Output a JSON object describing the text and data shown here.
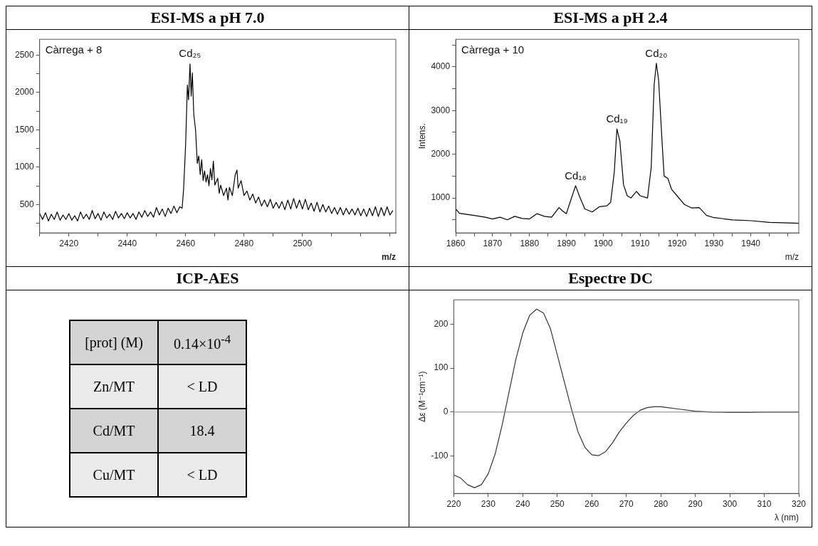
{
  "chart_data": [
    {
      "type": "line",
      "title": "ESI-MS a pH 7.0",
      "xlabel": "m/z",
      "annotations": [
        "Càrrega + 8",
        {
          "text": "Cd₂₅",
          "x": 2461.5,
          "y": 2380
        }
      ],
      "grid": false,
      "legend": false,
      "marker": "none",
      "line_style": "solid",
      "xlim": [
        2410,
        2532
      ],
      "ylim": [
        120,
        2710
      ],
      "xticks": [
        {
          "value": 2410,
          "label": null
        },
        2420,
        {
          "value": 2430,
          "label": null
        },
        2440,
        {
          "value": 2450,
          "label": null
        },
        2460,
        {
          "value": 2470,
          "label": null
        },
        2480,
        {
          "value": 2490,
          "label": null
        },
        2500,
        {
          "value": 2510,
          "label": null
        },
        {
          "value": 2520,
          "label": null
        },
        {
          "value": 2530,
          "label": null
        }
      ],
      "yticks": [
        {
          "value": 250,
          "label": null
        },
        500,
        {
          "value": 750,
          "label": null
        },
        1000,
        {
          "value": 1250,
          "label": null
        },
        1500,
        {
          "value": 1750,
          "label": null
        },
        2000,
        {
          "value": 2250,
          "label": null
        },
        2500
      ],
      "series": [
        {
          "color": "#000000",
          "x": [
            2410,
            2411,
            2412,
            2413,
            2414,
            2415,
            2416,
            2417,
            2418,
            2419,
            2420,
            2421,
            2422,
            2423,
            2424,
            2425,
            2426,
            2427,
            2428,
            2429,
            2430,
            2431,
            2432,
            2433,
            2434,
            2435,
            2436,
            2437,
            2438,
            2439,
            2440,
            2441,
            2442,
            2443,
            2444,
            2445,
            2446,
            2447,
            2448,
            2449,
            2450,
            2451,
            2452,
            2453,
            2454,
            2455,
            2456,
            2457,
            2458,
            2458.8,
            2459.3,
            2460,
            2460.6,
            2461,
            2461.5,
            2461.9,
            2462.3,
            2462.8,
            2463.4,
            2464,
            2464.5,
            2465,
            2465.5,
            2466,
            2466.5,
            2467,
            2467.5,
            2468,
            2468.5,
            2469,
            2469.5,
            2470,
            2471,
            2471.5,
            2472,
            2473,
            2474,
            2474.5,
            2475,
            2476,
            2477,
            2477.6,
            2478,
            2479,
            2480,
            2481,
            2482,
            2483,
            2484,
            2485,
            2486,
            2487,
            2488,
            2489,
            2490,
            2491,
            2492,
            2493,
            2494,
            2495,
            2496,
            2497,
            2498,
            2499,
            2500,
            2501,
            2502,
            2503,
            2504,
            2505,
            2506,
            2507,
            2508,
            2509,
            2510,
            2511,
            2512,
            2513,
            2514,
            2515,
            2516,
            2517,
            2518,
            2519,
            2520,
            2521,
            2522,
            2523,
            2524,
            2525,
            2526,
            2527,
            2528,
            2529,
            2530,
            2531
          ],
          "values": [
            380,
            300,
            390,
            280,
            370,
            300,
            400,
            290,
            360,
            300,
            380,
            290,
            350,
            280,
            400,
            310,
            370,
            300,
            420,
            310,
            380,
            290,
            400,
            320,
            370,
            300,
            410,
            320,
            380,
            310,
            390,
            320,
            380,
            300,
            400,
            330,
            420,
            340,
            400,
            330,
            460,
            360,
            440,
            340,
            450,
            380,
            480,
            390,
            470,
            450,
            700,
            1300,
            2100,
            1900,
            2380,
            1950,
            2260,
            1700,
            1500,
            1050,
            1150,
            900,
            1100,
            820,
            950,
            800,
            900,
            750,
            980,
            830,
            1080,
            760,
            850,
            650,
            760,
            620,
            720,
            560,
            730,
            620,
            900,
            960,
            720,
            820,
            620,
            680,
            560,
            640,
            520,
            600,
            480,
            560,
            470,
            570,
            450,
            530,
            450,
            540,
            430,
            560,
            440,
            580,
            450,
            560,
            440,
            570,
            430,
            520,
            410,
            530,
            400,
            500,
            400,
            480,
            380,
            460,
            370,
            460,
            360,
            450,
            370,
            440,
            360,
            450,
            350,
            440,
            340,
            450,
            350,
            470,
            340,
            460,
            350,
            470,
            360,
            420
          ]
        }
      ]
    },
    {
      "type": "line",
      "title": "ESI-MS a pH 2.4",
      "xlabel": "m/z",
      "ylabel": "Intens.",
      "annotations": [
        "Càrrega + 10",
        {
          "text": "Cd₁₈",
          "x": 1892.5,
          "y": 1280
        },
        {
          "text": "Cd₁₉",
          "x": 1903.7,
          "y": 2580
        },
        {
          "text": "Cd₂₀",
          "x": 1914.4,
          "y": 4080
        }
      ],
      "grid": false,
      "legend": false,
      "marker": "none",
      "line_style": "solid",
      "xlim": [
        1860,
        1953
      ],
      "ylim": [
        200,
        4630
      ],
      "xticks": [
        1860,
        {
          "value": 1865,
          "label": null
        },
        1870,
        {
          "value": 1875,
          "label": null
        },
        1880,
        {
          "value": 1885,
          "label": null
        },
        1890,
        {
          "value": 1895,
          "label": null
        },
        1900,
        {
          "value": 1905,
          "label": null
        },
        1910,
        {
          "value": 1915,
          "label": null
        },
        1920,
        {
          "value": 1925,
          "label": null
        },
        1930,
        {
          "value": 1935,
          "label": null
        },
        1940,
        {
          "value": 1945,
          "label": null
        },
        {
          "value": 1950,
          "label": null
        }
      ],
      "yticks": [
        {
          "value": 500,
          "label": null
        },
        1000,
        {
          "value": 1500,
          "label": null
        },
        2000,
        {
          "value": 2500,
          "label": null
        },
        3000,
        {
          "value": 3500,
          "label": null
        },
        4000,
        {
          "value": 4500,
          "label": null
        }
      ],
      "series": [
        {
          "color": "#000000",
          "x": [
            1860,
            1861,
            1865,
            1868,
            1870,
            1872,
            1874,
            1876,
            1878,
            1880,
            1882,
            1884,
            1886,
            1888,
            1889,
            1890,
            1891,
            1892.5,
            1893.5,
            1895,
            1897,
            1899,
            1901,
            1902,
            1903,
            1903.7,
            1904.5,
            1905.5,
            1906.5,
            1907.5,
            1909,
            1910,
            1912,
            1913,
            1913.8,
            1914.4,
            1915,
            1916,
            1916.5,
            1917.5,
            1918.5,
            1920,
            1922,
            1924,
            1926,
            1928,
            1930,
            1935,
            1940,
            1945,
            1950,
            1953
          ],
          "values": [
            750,
            650,
            600,
            560,
            520,
            560,
            500,
            580,
            530,
            520,
            640,
            580,
            560,
            780,
            700,
            640,
            900,
            1280,
            1050,
            750,
            680,
            800,
            820,
            900,
            1600,
            2580,
            2300,
            1300,
            1050,
            1000,
            1150,
            1050,
            1000,
            1700,
            3600,
            4080,
            3700,
            2200,
            1500,
            1450,
            1200,
            1050,
            850,
            770,
            780,
            600,
            550,
            500,
            480,
            440,
            430,
            420
          ]
        }
      ]
    },
    {
      "type": "other",
      "title": "ICP-AES",
      "annotations": [
        "[prot] (M)",
        "0.14×10$^{-4}$",
        "Zn/MT",
        "< LD",
        "Cd/MT",
        "18.4",
        "Cu/MT",
        "< LD"
      ]
    },
    {
      "type": "line",
      "title": "Espectre DC",
      "xlabel": "λ (nm)",
      "ylabel": "Δε (M⁻¹cm⁻¹)",
      "grid": false,
      "legend": false,
      "marker": "none",
      "line_style": "solid",
      "xlim": [
        220,
        320
      ],
      "ylim": [
        -185,
        255
      ],
      "xticks": [
        220,
        230,
        240,
        250,
        260,
        270,
        280,
        290,
        300,
        310,
        320
      ],
      "yticks": [
        -100,
        0,
        100,
        200
      ],
      "ref_lines": [
        {
          "axis": "y",
          "value": 0,
          "color": "#888888"
        }
      ],
      "series": [
        {
          "color": "#333333",
          "x": [
            220,
            222,
            224,
            226,
            228,
            230,
            232,
            234,
            236,
            238,
            240,
            242,
            244,
            246,
            248,
            250,
            252,
            254,
            256,
            258,
            260,
            262,
            264,
            266,
            268,
            270,
            272,
            274,
            276,
            278,
            280,
            282,
            285,
            290,
            295,
            300,
            305,
            310,
            320
          ],
          "values": [
            -143,
            -150,
            -165,
            -172,
            -165,
            -140,
            -95,
            -30,
            45,
            120,
            180,
            220,
            234,
            225,
            190,
            130,
            70,
            10,
            -45,
            -80,
            -97,
            -99,
            -90,
            -70,
            -45,
            -25,
            -8,
            4,
            10,
            12,
            12,
            10,
            7,
            2,
            0,
            -1,
            -1,
            0,
            0
          ]
        }
      ]
    }
  ]
}
